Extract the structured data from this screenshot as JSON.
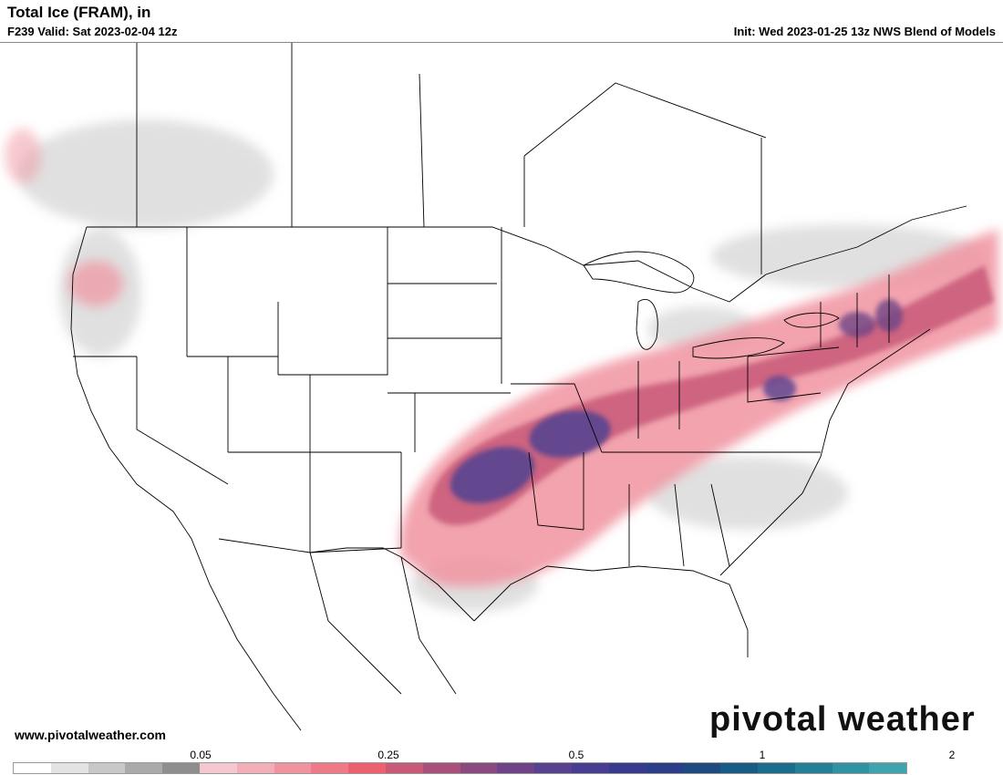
{
  "header": {
    "title": "Total Ice (FRAM), in",
    "valid": "F239 Valid: Sat 2023-02-04 12z",
    "init": "Init: Wed 2023-01-25 13z NWS Blend of Models"
  },
  "footer": {
    "site": "www.pivotalweather.com",
    "brand": "pivotal weather"
  },
  "colorbar": {
    "tick_labels": [
      "0.05",
      "0.25",
      "0.5",
      "1",
      "2"
    ],
    "colors": [
      "#ffffff",
      "#e3e3e3",
      "#c8c8c8",
      "#aaaaaa",
      "#8e8e8e",
      "#f3c6d0",
      "#f1adb8",
      "#f093a0",
      "#ee7a88",
      "#ec6070",
      "#c85a78",
      "#a9507a",
      "#8a4a80",
      "#6e4486",
      "#584290",
      "#473e92",
      "#383a8e",
      "#2c3e88",
      "#1e4a80",
      "#175c84",
      "#1a6e8c",
      "#258096",
      "#3192a2",
      "#3fa4ae"
    ]
  },
  "map": {
    "layers": [
      "state-boundaries",
      "ice-accumulation-shading"
    ],
    "legend_units": "in"
  }
}
